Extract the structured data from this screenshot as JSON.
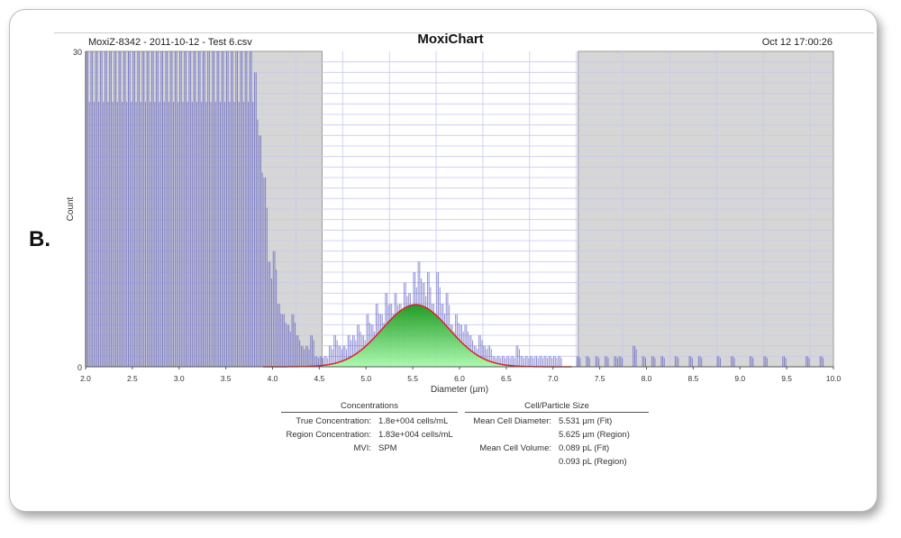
{
  "figure_label": "B.",
  "header": {
    "file": "MoxiZ-8342 - 2011-10-12 - Test  6.csv",
    "title": "MoxiChart",
    "datetime": "Oct 12 17:00:26"
  },
  "chart_data": {
    "type": "bar",
    "title": "MoxiChart",
    "xlabel": "Diameter (µm)",
    "ylabel": "Count",
    "xlim": [
      2.0,
      10.0
    ],
    "ylim": [
      0,
      30
    ],
    "xticks": [
      "2.0",
      "2.5",
      "3.0",
      "3.5",
      "4.0",
      "4.5",
      "5.0",
      "5.5",
      "6.0",
      "6.5",
      "7.0",
      "7.5",
      "8.0",
      "8.5",
      "9.0",
      "9.5",
      "10.0"
    ],
    "yticks": [
      "0",
      "30"
    ],
    "grid": true,
    "excluded_regions": [
      [
        2.0,
        4.53
      ],
      [
        7.27,
        10.0
      ]
    ],
    "bin_start": 2.0,
    "bin_width": 0.05,
    "counts": [
      30,
      30,
      30,
      30,
      30,
      30,
      30,
      30,
      30,
      30,
      30,
      30,
      30,
      30,
      30,
      30,
      30,
      30,
      30,
      30,
      30,
      30,
      30,
      30,
      30,
      30,
      30,
      30,
      30,
      30,
      30,
      30,
      30,
      30,
      30,
      30,
      28,
      22,
      18,
      10,
      11,
      6,
      5,
      4,
      5,
      3,
      2,
      2,
      3,
      1,
      1,
      1,
      2,
      3,
      2,
      2,
      3,
      3,
      4,
      3,
      5,
      4,
      6,
      5,
      7,
      6,
      7,
      6,
      8,
      7,
      9,
      10,
      8,
      9,
      6,
      9,
      6,
      7,
      4,
      5,
      4,
      4,
      3,
      2,
      3,
      2,
      2,
      1,
      1,
      1,
      1,
      1,
      2,
      1,
      1,
      1,
      1,
      1,
      1,
      1,
      1,
      1,
      0,
      0,
      0,
      1,
      0,
      1,
      0,
      1,
      0,
      1,
      0,
      1,
      1,
      0,
      0,
      2,
      0,
      1,
      0,
      1,
      0,
      1,
      0,
      0,
      1,
      0,
      0,
      1,
      0,
      1,
      0,
      0,
      0,
      1,
      0,
      0,
      1,
      0,
      0,
      0,
      1,
      0,
      0,
      1,
      0,
      0,
      0,
      1,
      0,
      0,
      0,
      0,
      1,
      0,
      0,
      1,
      0,
      0
    ],
    "fit": {
      "type": "gaussian",
      "mean": 5.531,
      "sd": 0.36,
      "peak": 5.9,
      "range": [
        3.9,
        7.2
      ]
    },
    "colors": {
      "bars": "#3a3ab8",
      "fit_fill": "#22cc22",
      "fit_line": "#dd2222",
      "excluded": "#d6d6d6",
      "grid": "#c8c8f0"
    }
  },
  "concentrations": {
    "header": "Concentrations",
    "rows": [
      {
        "k": "True Concentration:",
        "v": "1.8e+004 cells/mL"
      },
      {
        "k": "Region Concentration:",
        "v": "1.83e+004 cells/mL"
      },
      {
        "k": "MVI:",
        "v": "SPM"
      }
    ]
  },
  "size": {
    "header": "Cell/Particle Size",
    "rows": [
      {
        "k": "Mean Cell Diameter:",
        "v": "5.531 µm (Fit)"
      },
      {
        "k": "",
        "v": "5.625 µm (Region)"
      },
      {
        "k": "Mean Cell Volume:",
        "v": "0.089 pL (Fit)"
      },
      {
        "k": "",
        "v": "0.093 pL (Region)"
      }
    ]
  }
}
